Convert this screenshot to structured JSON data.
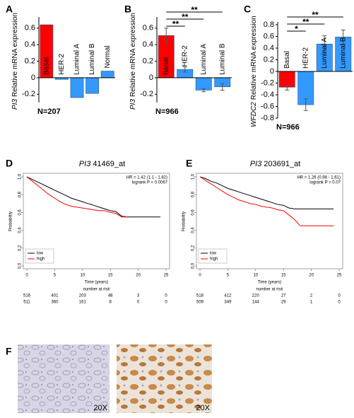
{
  "chart_data": [
    {
      "type": "bar",
      "panel": "A",
      "gene": "PI3",
      "y_label": "Relative mRNA expression",
      "note": "N=207",
      "categories": [
        "Basal",
        "HER-2",
        "Luminal A",
        "Luminal B",
        "Normal"
      ],
      "values": [
        0.64,
        -0.02,
        -0.24,
        -0.19,
        0.08
      ],
      "colors": [
        "#ff0000",
        "#3399ff",
        "#3399ff",
        "#3399ff",
        "#3399ff"
      ],
      "ylim": [
        -0.3,
        0.7
      ],
      "yticks": [
        -0.2,
        0,
        0.2,
        0.4,
        0.6
      ]
    },
    {
      "type": "bar",
      "panel": "B",
      "gene": "PI3",
      "y_label": "Relative mRNA expression",
      "note": "N=966",
      "categories": [
        "Basal",
        "HER-2",
        "Luminal A",
        "Luminal B"
      ],
      "values": [
        0.51,
        0.1,
        -0.15,
        -0.11
      ],
      "errors": [
        0.09,
        0.03,
        0.02,
        0.04
      ],
      "colors": [
        "#ff0000",
        "#3399ff",
        "#3399ff",
        "#3399ff"
      ],
      "significance": [
        {
          "compare": [
            "Basal",
            "HER-2"
          ],
          "label": "**"
        },
        {
          "compare": [
            "Basal",
            "Luminal A"
          ],
          "label": "**"
        },
        {
          "compare": [
            "Basal",
            "Luminal B"
          ],
          "label": "**"
        }
      ],
      "ylim": [
        -0.3,
        0.7
      ],
      "yticks": [
        -0.2,
        0,
        0.2,
        0.4,
        0.6
      ]
    },
    {
      "type": "bar",
      "panel": "C",
      "gene": "WFDC2",
      "y_label": "Relative mRNA expression",
      "note": "N=966",
      "categories": [
        "Basal",
        "HER-2",
        "Luminal A",
        "Luminal B"
      ],
      "values": [
        -0.27,
        -0.57,
        0.47,
        0.59
      ],
      "errors": [
        0.05,
        0.1,
        0.14,
        0.12
      ],
      "colors": [
        "#ff0000",
        "#3399ff",
        "#3399ff",
        "#3399ff"
      ],
      "significance": [
        {
          "compare": [
            "Basal",
            "HER-2"
          ],
          "label": "*"
        },
        {
          "compare": [
            "Basal",
            "Luminal A"
          ],
          "label": "**"
        },
        {
          "compare": [
            "Basal",
            "Luminal B"
          ],
          "label": "**"
        }
      ],
      "ylim": [
        -0.8,
        0.8
      ],
      "yticks": [
        -0.8,
        -0.6,
        -0.4,
        -0.2,
        0,
        0.2,
        0.4,
        0.6,
        0.8
      ]
    },
    {
      "type": "line",
      "panel": "D",
      "gene": "PI3",
      "title": "41469_at",
      "hr": "HR = 1.42 (1.1 - 1.82)",
      "p_value": "logrank P = 0.0067",
      "x_label": "Time (years)",
      "y_label": "Probability",
      "x": [
        0,
        1,
        2,
        3,
        4,
        5,
        6,
        7,
        8,
        9,
        10,
        11,
        12,
        13,
        14,
        15,
        16,
        17,
        18,
        20,
        22,
        24
      ],
      "series": [
        {
          "name": "low",
          "color": "#000000",
          "values": [
            1,
            0.97,
            0.94,
            0.91,
            0.88,
            0.85,
            0.82,
            0.79,
            0.76,
            0.74,
            0.72,
            0.7,
            0.68,
            0.66,
            0.64,
            0.62,
            0.61,
            0.56,
            0.55,
            0.55,
            0.55,
            0.55
          ]
        },
        {
          "name": "high",
          "color": "#ff0000",
          "values": [
            1,
            0.95,
            0.9,
            0.85,
            0.8,
            0.76,
            0.72,
            0.69,
            0.67,
            0.66,
            0.65,
            0.64,
            0.63,
            0.62,
            0.62,
            0.6,
            0.59,
            0.55,
            0.55,
            null,
            null,
            null
          ]
        }
      ],
      "xlim": [
        0,
        25
      ],
      "xticks": [
        0,
        5,
        10,
        15,
        20,
        25
      ],
      "ylim": [
        0,
        1
      ],
      "yticks": [
        {
          "value": 0,
          "label": "0.0"
        },
        0.2,
        0.4,
        0.6,
        0.8,
        {
          "value": 1,
          "label": "1.0"
        }
      ],
      "risk_table": {
        "title": "number at risk",
        "rows": [
          [
            516,
            401,
            203,
            48,
            3,
            0
          ],
          [
            511,
            360,
            161,
            8,
            0,
            0
          ]
        ]
      }
    },
    {
      "type": "line",
      "panel": "E",
      "gene": "PI3",
      "title": "203691_at",
      "hr": "HR = 1.26 (0.98 - 1.61)",
      "p_value": "logrank P = 0.07",
      "x_label": "Time (years)",
      "y_label": "Probability",
      "x": [
        0,
        1,
        2,
        3,
        4,
        5,
        6,
        7,
        8,
        9,
        10,
        11,
        12,
        13,
        14,
        15,
        16,
        17,
        18,
        20,
        22,
        24
      ],
      "series": [
        {
          "name": "low",
          "color": "#000000",
          "values": [
            1,
            0.98,
            0.95,
            0.93,
            0.9,
            0.87,
            0.85,
            0.83,
            0.81,
            0.79,
            0.77,
            0.75,
            0.73,
            0.71,
            0.69,
            0.68,
            0.65,
            0.64,
            0.64,
            0.64,
            0.64,
            0.64
          ]
        },
        {
          "name": "high",
          "color": "#ff0000",
          "values": [
            1,
            0.96,
            0.92,
            0.88,
            0.84,
            0.8,
            0.77,
            0.74,
            0.72,
            0.7,
            0.69,
            0.67,
            0.66,
            0.65,
            0.63,
            0.62,
            0.57,
            0.52,
            0.45,
            0.45,
            0.45,
            0.45
          ]
        }
      ],
      "xlim": [
        0,
        25
      ],
      "xticks": [
        0,
        5,
        10,
        15,
        20,
        25
      ],
      "ylim": [
        0,
        1
      ],
      "yticks": [
        {
          "value": 0,
          "label": "0.0"
        },
        0.2,
        0.4,
        0.6,
        0.8,
        {
          "value": 1,
          "label": "1.0"
        }
      ],
      "risk_table": {
        "title": "number at risk",
        "rows": [
          [
            518,
            412,
            220,
            27,
            2,
            0
          ],
          [
            509,
            349,
            144,
            29,
            1,
            0
          ]
        ]
      }
    }
  ],
  "figure_f": {
    "panel": "F",
    "images": [
      {
        "label": "20X"
      },
      {
        "label": "20X"
      }
    ]
  }
}
